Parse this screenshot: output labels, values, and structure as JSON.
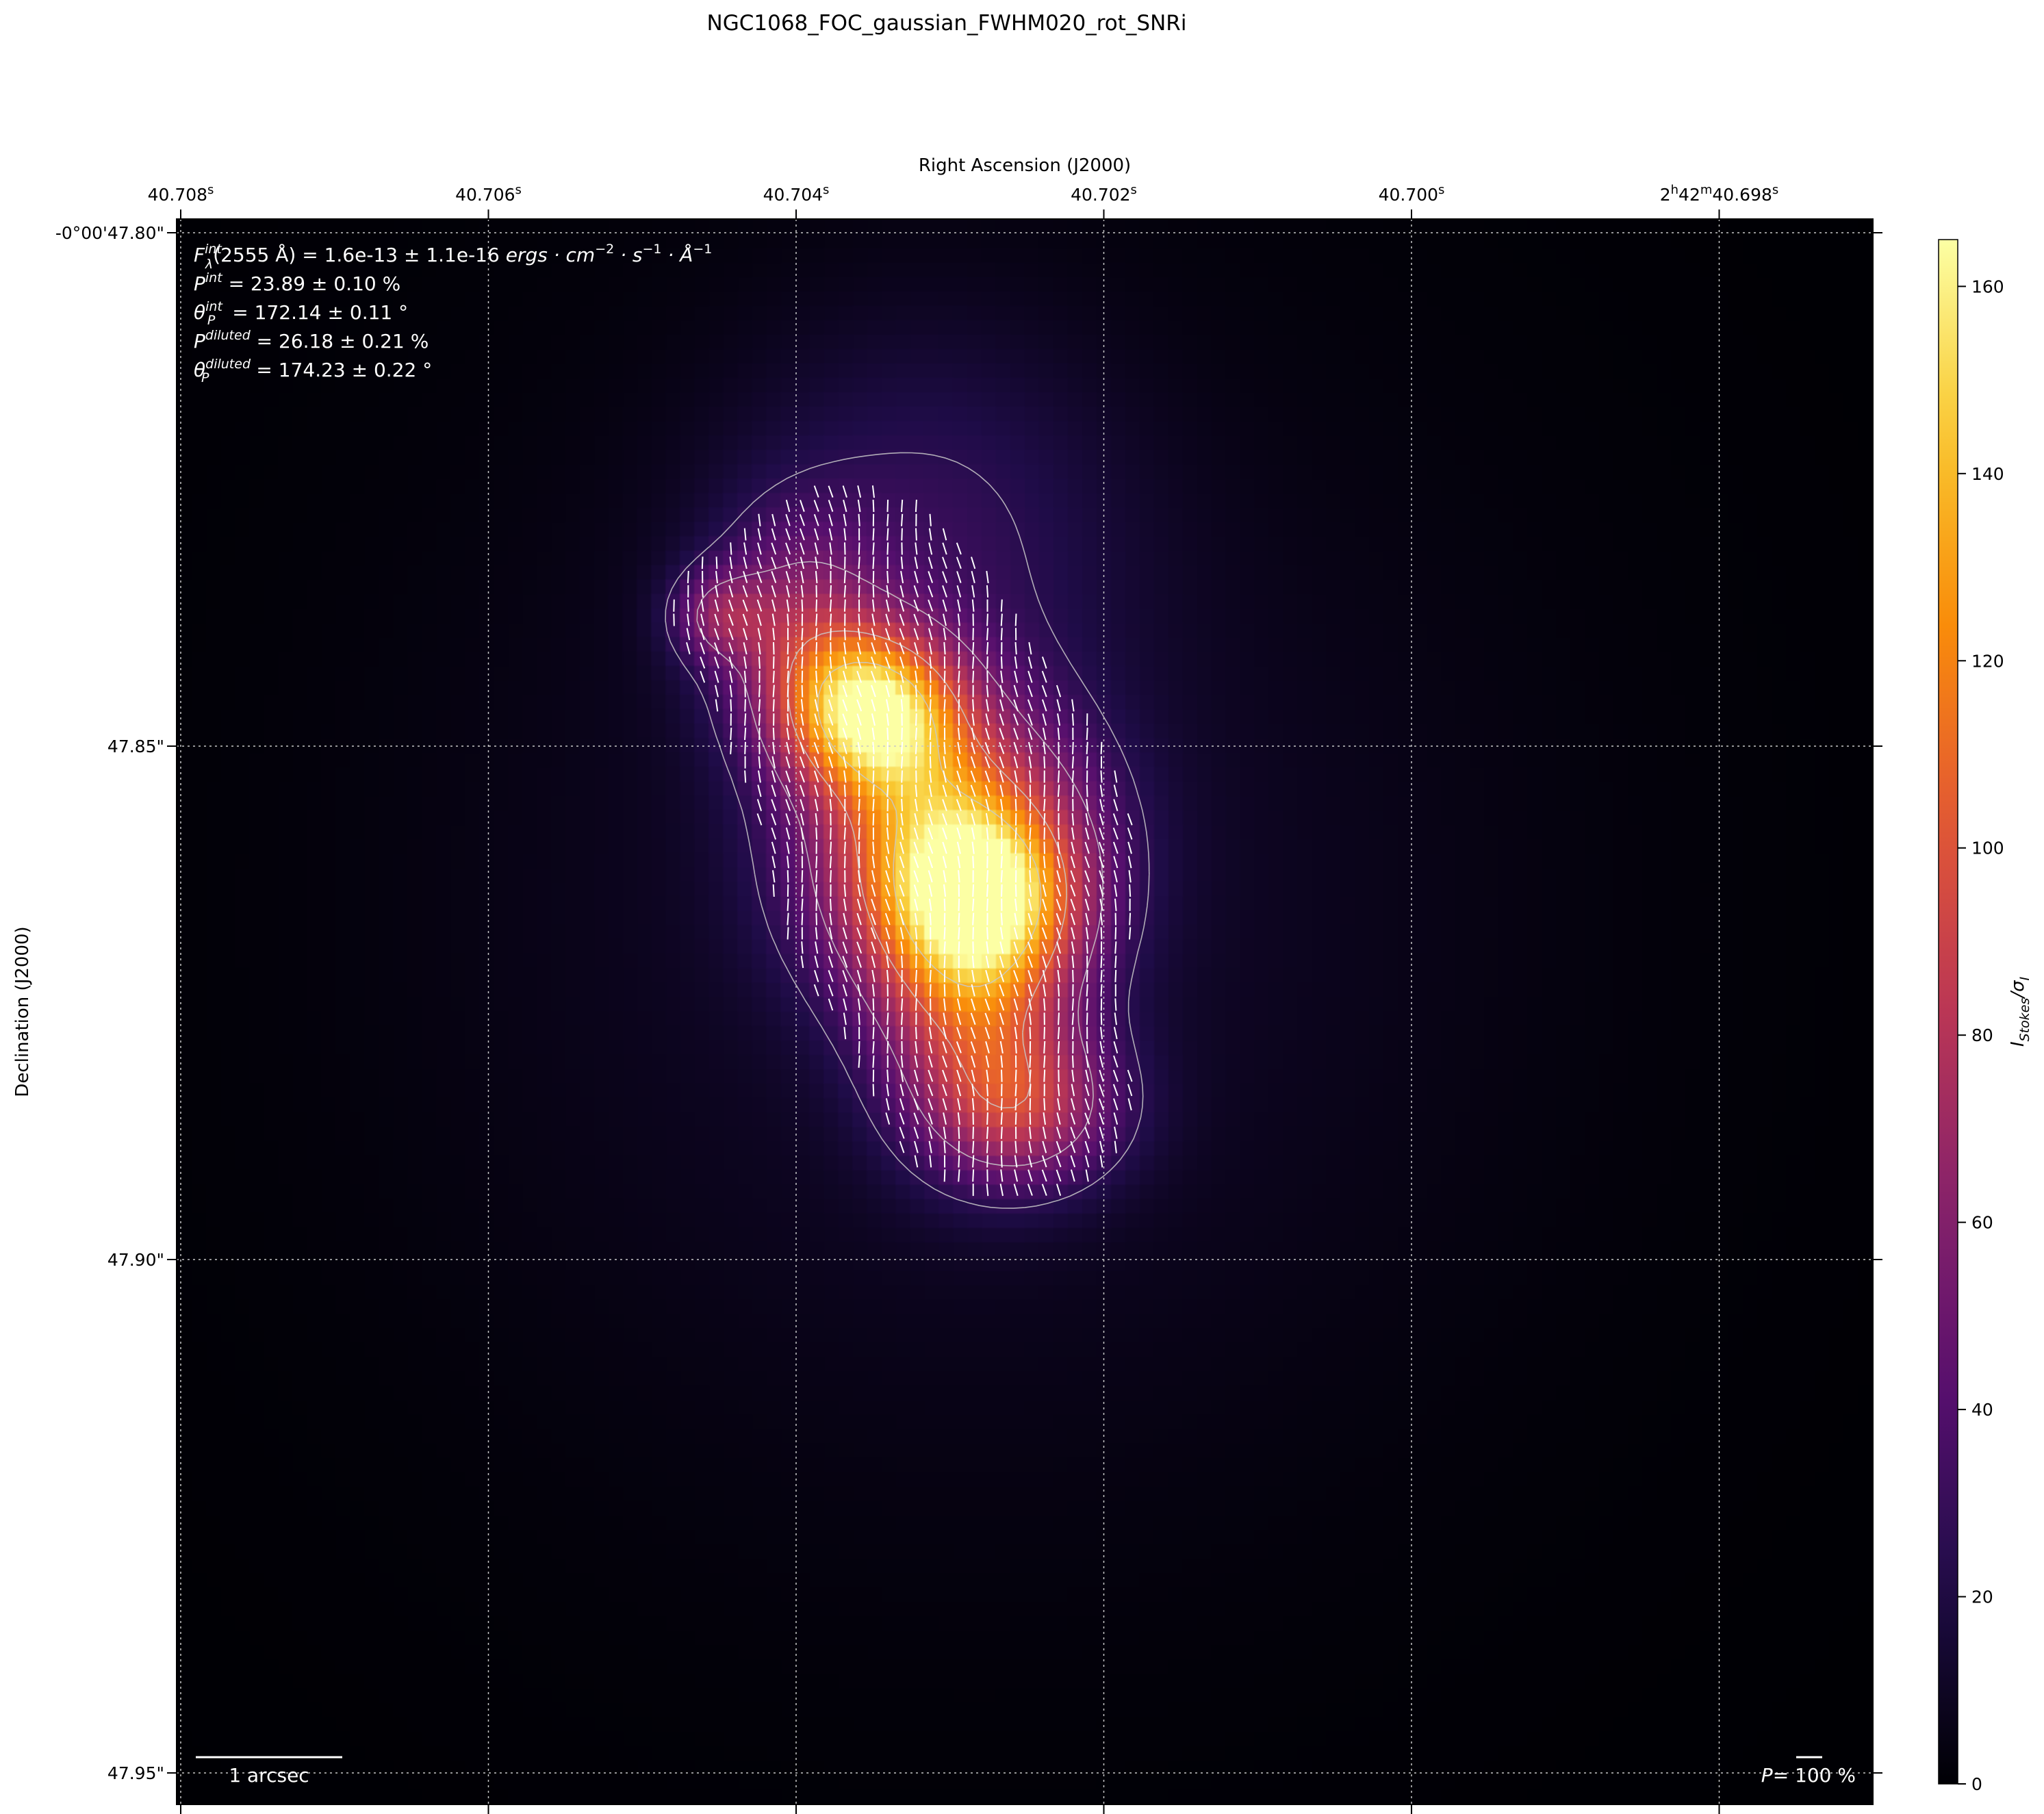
{
  "chart_data": {
    "type": "heatmap",
    "title": "NGC1068_FOC_gaussian_FWHM020_rot_SNRi",
    "xlabel": "Right Ascension (J2000)",
    "ylabel": "Declination (J2000)",
    "grid": true,
    "x_ticks": [
      {
        "main": "40.708",
        "sup": "s"
      },
      {
        "main": "40.706",
        "sup": "s"
      },
      {
        "main": "40.704",
        "sup": "s"
      },
      {
        "main": "40.702",
        "sup": "s"
      },
      {
        "main": "40.700",
        "sup": "s"
      },
      {
        "main": "2",
        "sup": "h",
        "main2": "42",
        "sup2": "m",
        "main3": "40.698",
        "sup3": "s"
      }
    ],
    "y_ticks": [
      "-0°00'47.80\"",
      "47.85\"",
      "47.90\"",
      "47.95\""
    ],
    "colorbar": {
      "label_main": "I",
      "label_sub": "Stokes",
      "label_div": "/σ",
      "label_sub2": "I",
      "min": 0,
      "max": 165,
      "ticks": [
        "0",
        "20",
        "40",
        "60",
        "80",
        "100",
        "120",
        "140",
        "160"
      ],
      "colormap": "inferno"
    },
    "annotations": {
      "flux": {
        "sym": "F",
        "sup": "int",
        "sub": "λ",
        "rest": "(2555 Å) = 1.6e-13 ± 1.1e-16 ",
        "unit": "ergs · cm",
        "e1": "−2",
        "u2": " · s",
        "e2": "−1",
        "u3": " · Å",
        "e3": "−1"
      },
      "p_int": {
        "sym": "P",
        "sup": "int",
        "rest": " = 23.89 ± 0.10 %"
      },
      "theta_int": {
        "sym": "θ",
        "sub": "P",
        "sup": "int",
        "rest": " = 172.14 ± 0.11 °"
      },
      "p_dil": {
        "sym": "P",
        "sup": "diluted",
        "rest": " = 26.18 ± 0.21 %"
      },
      "theta_dil": {
        "sym": "θ",
        "sub": "P",
        "sup": "diluted",
        "rest": " = 174.23 ± 0.22 °"
      }
    },
    "scalebar_label": "1 arcsec",
    "pol_key": {
      "sym": "P",
      "rest": "= 100 %"
    },
    "sources": [
      {
        "ra_frac": 0.455,
        "dec_frac": 0.4,
        "amp": 120,
        "sx": 0.055,
        "sy": 0.06
      },
      {
        "ra_frac": 0.41,
        "dec_frac": 0.31,
        "amp": 125,
        "sx": 0.035,
        "sy": 0.035
      },
      {
        "ra_frac": 0.48,
        "dec_frac": 0.43,
        "amp": 55,
        "sx": 0.035,
        "sy": 0.035
      },
      {
        "ra_frac": 0.47,
        "dec_frac": 0.49,
        "amp": 65,
        "sx": 0.04,
        "sy": 0.06
      },
      {
        "ra_frac": 0.5,
        "dec_frac": 0.56,
        "amp": 60,
        "sx": 0.04,
        "sy": 0.035
      },
      {
        "ra_frac": 0.365,
        "dec_frac": 0.26,
        "amp": 45,
        "sx": 0.035,
        "sy": 0.05
      },
      {
        "ra_frac": 0.32,
        "dec_frac": 0.25,
        "amp": 40,
        "sx": 0.02,
        "sy": 0.02
      },
      {
        "ra_frac": 0.44,
        "dec_frac": 0.2,
        "amp": 22,
        "sx": 0.08,
        "sy": 0.09
      },
      {
        "ra_frac": 0.47,
        "dec_frac": 0.44,
        "amp": 12,
        "sx": 0.22,
        "sy": 0.25
      }
    ]
  }
}
